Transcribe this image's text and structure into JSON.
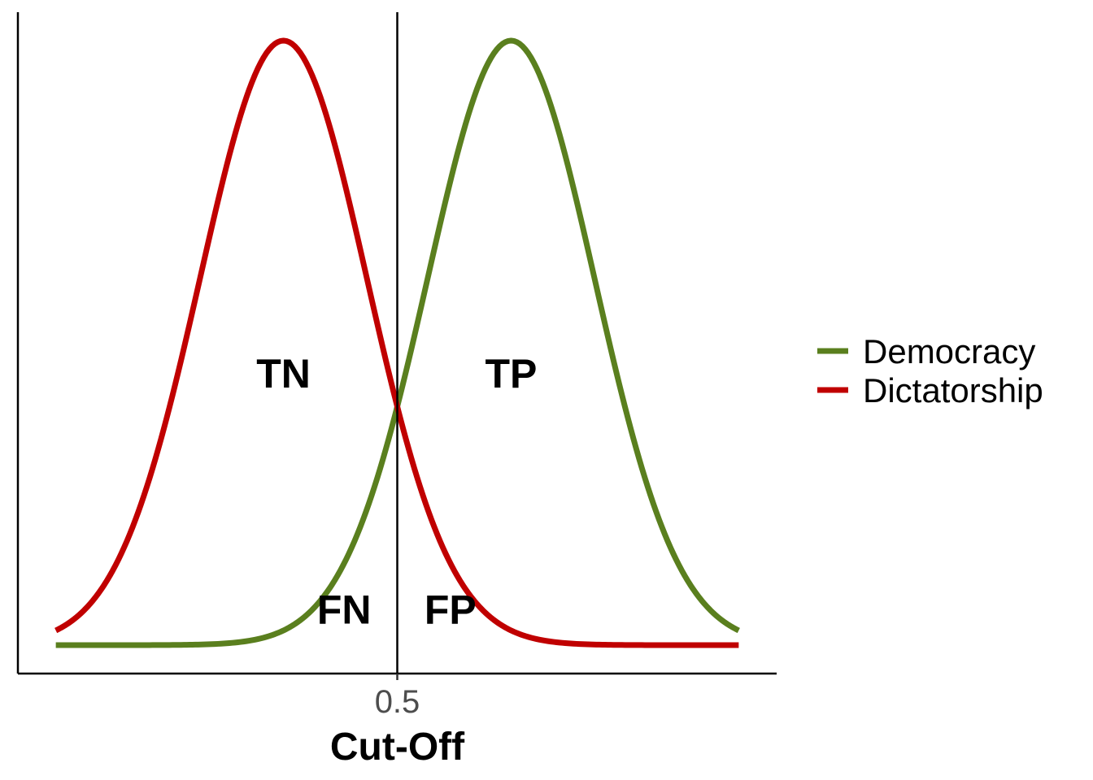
{
  "chart_data": {
    "type": "line",
    "title": "",
    "xlabel": "Cut-Off",
    "ylabel": "",
    "xlim": [
      0.0,
      1.0
    ],
    "ylim": [
      0.0,
      1.0
    ],
    "x_ticks": [
      {
        "value": 0.5,
        "label": "0.5"
      }
    ],
    "cutoff": 0.5,
    "legend_position": "right",
    "grid": false,
    "series": [
      {
        "name": "Democracy",
        "color": "#5a7f1e",
        "distribution": "normal",
        "mean": 0.65,
        "sd": 0.11
      },
      {
        "name": "Dictatorship",
        "color": "#c00000",
        "distribution": "normal",
        "mean": 0.35,
        "sd": 0.11
      }
    ],
    "x_range": [
      0.05,
      0.95
    ],
    "annotations": [
      {
        "text": "TN",
        "x": 0.35,
        "y": 0.45
      },
      {
        "text": "TP",
        "x": 0.65,
        "y": 0.45
      },
      {
        "text": "FN",
        "x": 0.43,
        "y": 0.06
      },
      {
        "text": "FP",
        "x": 0.57,
        "y": 0.06
      }
    ]
  }
}
